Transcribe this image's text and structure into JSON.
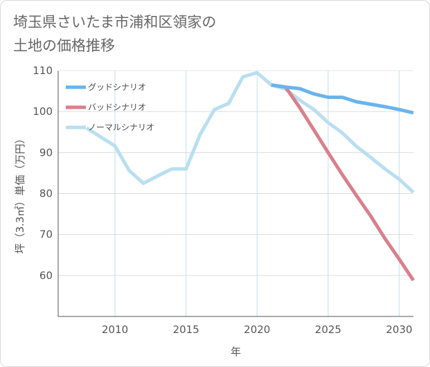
{
  "title_lines": [
    "埼玉県さいたま市浦和区領家の",
    "土地の価格推移"
  ],
  "chart_data": {
    "type": "line",
    "title": "埼玉県さいたま市浦和区領家の土地の価格推移",
    "xlabel": "年",
    "ylabel": "坪（3.3㎡）単価（万円）",
    "xlim": [
      2006,
      2031
    ],
    "ylim": [
      50,
      110
    ],
    "xticks": [
      2010,
      2015,
      2020,
      2025,
      2030
    ],
    "yticks": [
      60,
      70,
      80,
      90,
      100,
      110
    ],
    "grid": true,
    "legend_position": "top-left",
    "series": [
      {
        "name": "グッドシナリオ",
        "color": "#6ab4ee",
        "points": [
          [
            2021,
            106.5
          ],
          [
            2022,
            106.0
          ],
          [
            2023,
            105.6
          ],
          [
            2024,
            104.3
          ],
          [
            2025,
            103.5
          ],
          [
            2026,
            103.5
          ],
          [
            2027,
            102.4
          ],
          [
            2028,
            101.8
          ],
          [
            2029,
            101.2
          ],
          [
            2030,
            100.5
          ],
          [
            2031,
            99.7
          ]
        ]
      },
      {
        "name": "バッドシナリオ",
        "color": "#d9808c",
        "points": [
          [
            2021,
            106.5
          ],
          [
            2022,
            106.0
          ],
          [
            2023,
            101.0
          ],
          [
            2024,
            95.5
          ],
          [
            2025,
            90.0
          ],
          [
            2026,
            84.6
          ],
          [
            2027,
            79.5
          ],
          [
            2028,
            74.5
          ],
          [
            2029,
            69.0
          ],
          [
            2030,
            64.0
          ],
          [
            2031,
            58.8
          ]
        ]
      },
      {
        "name": "ノーマルシナリオ",
        "color": "#b9dff0",
        "points": [
          [
            2008,
            96.0
          ],
          [
            2009,
            93.8
          ],
          [
            2010,
            91.6
          ],
          [
            2011,
            85.6
          ],
          [
            2012,
            82.5
          ],
          [
            2013,
            84.3
          ],
          [
            2014,
            86.0
          ],
          [
            2015,
            86.0
          ],
          [
            2016,
            94.5
          ],
          [
            2017,
            100.5
          ],
          [
            2018,
            102.0
          ],
          [
            2019,
            108.5
          ],
          [
            2020,
            109.5
          ],
          [
            2021,
            106.5
          ],
          [
            2022,
            105.5
          ],
          [
            2023,
            102.8
          ],
          [
            2024,
            100.5
          ],
          [
            2025,
            97.3
          ],
          [
            2026,
            94.8
          ],
          [
            2027,
            91.5
          ],
          [
            2028,
            88.8
          ],
          [
            2029,
            86.0
          ],
          [
            2030,
            83.5
          ],
          [
            2031,
            80.3
          ]
        ]
      }
    ]
  }
}
